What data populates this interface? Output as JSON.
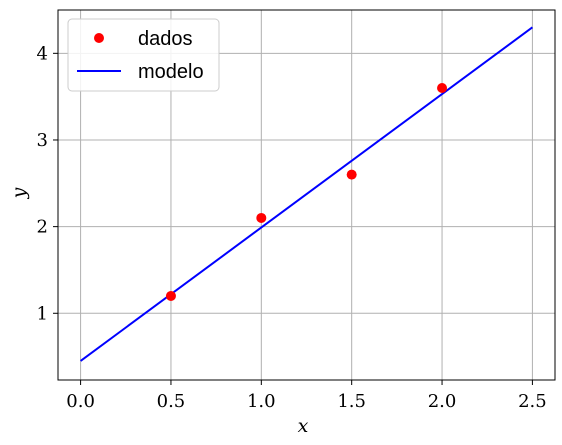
{
  "chart_data": {
    "type": "scatter",
    "title": "",
    "xlabel": "x",
    "ylabel": "y",
    "xlim": [
      -0.125,
      2.625
    ],
    "ylim": [
      0.23,
      4.5
    ],
    "xticks": [
      0.0,
      0.5,
      1.0,
      1.5,
      2.0,
      2.5
    ],
    "xtick_labels": [
      "0.0",
      "0.5",
      "1.0",
      "1.5",
      "2.0",
      "2.5"
    ],
    "yticks": [
      1,
      2,
      3,
      4
    ],
    "ytick_labels": [
      "1",
      "2",
      "3",
      "4"
    ],
    "grid": true,
    "legend_position": "top-left",
    "series": [
      {
        "name": "dados",
        "kind": "scatter",
        "color": "#ff0000",
        "x": [
          0.5,
          1.0,
          1.5,
          2.0
        ],
        "y": [
          1.2,
          2.1,
          2.6,
          3.6
        ]
      },
      {
        "name": "modelo",
        "kind": "line",
        "color": "#0000ff",
        "x": [
          0.0,
          2.5
        ],
        "y": [
          0.45,
          4.3
        ]
      }
    ]
  }
}
